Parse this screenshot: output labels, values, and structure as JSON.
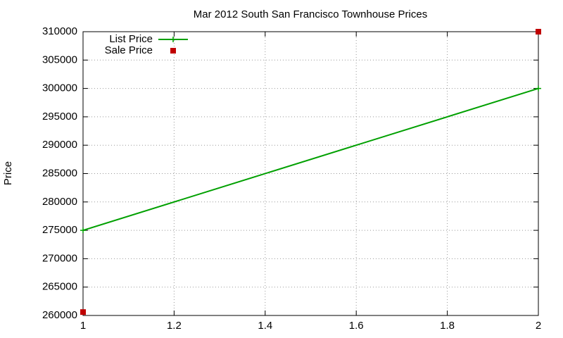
{
  "chart_data": {
    "type": "line",
    "title": "Mar 2012 South San Francisco Townhouse Prices",
    "y_label": "Price",
    "x": [
      1,
      2
    ],
    "series": [
      {
        "name": "List Price",
        "color": "#00a000",
        "style": "linespoints",
        "values": [
          275000,
          300000
        ]
      },
      {
        "name": "Sale Price",
        "color": "#c00000",
        "style": "points",
        "values": [
          260600,
          310000
        ]
      }
    ],
    "xlim": [
      1,
      2
    ],
    "xticks": [
      1,
      1.2,
      1.4,
      1.6,
      1.8,
      2
    ],
    "ylim": [
      260000,
      310000
    ],
    "yticks": [
      260000,
      265000,
      270000,
      275000,
      280000,
      285000,
      290000,
      295000,
      300000,
      305000,
      310000
    ],
    "grid": true,
    "legend": "top-left"
  }
}
